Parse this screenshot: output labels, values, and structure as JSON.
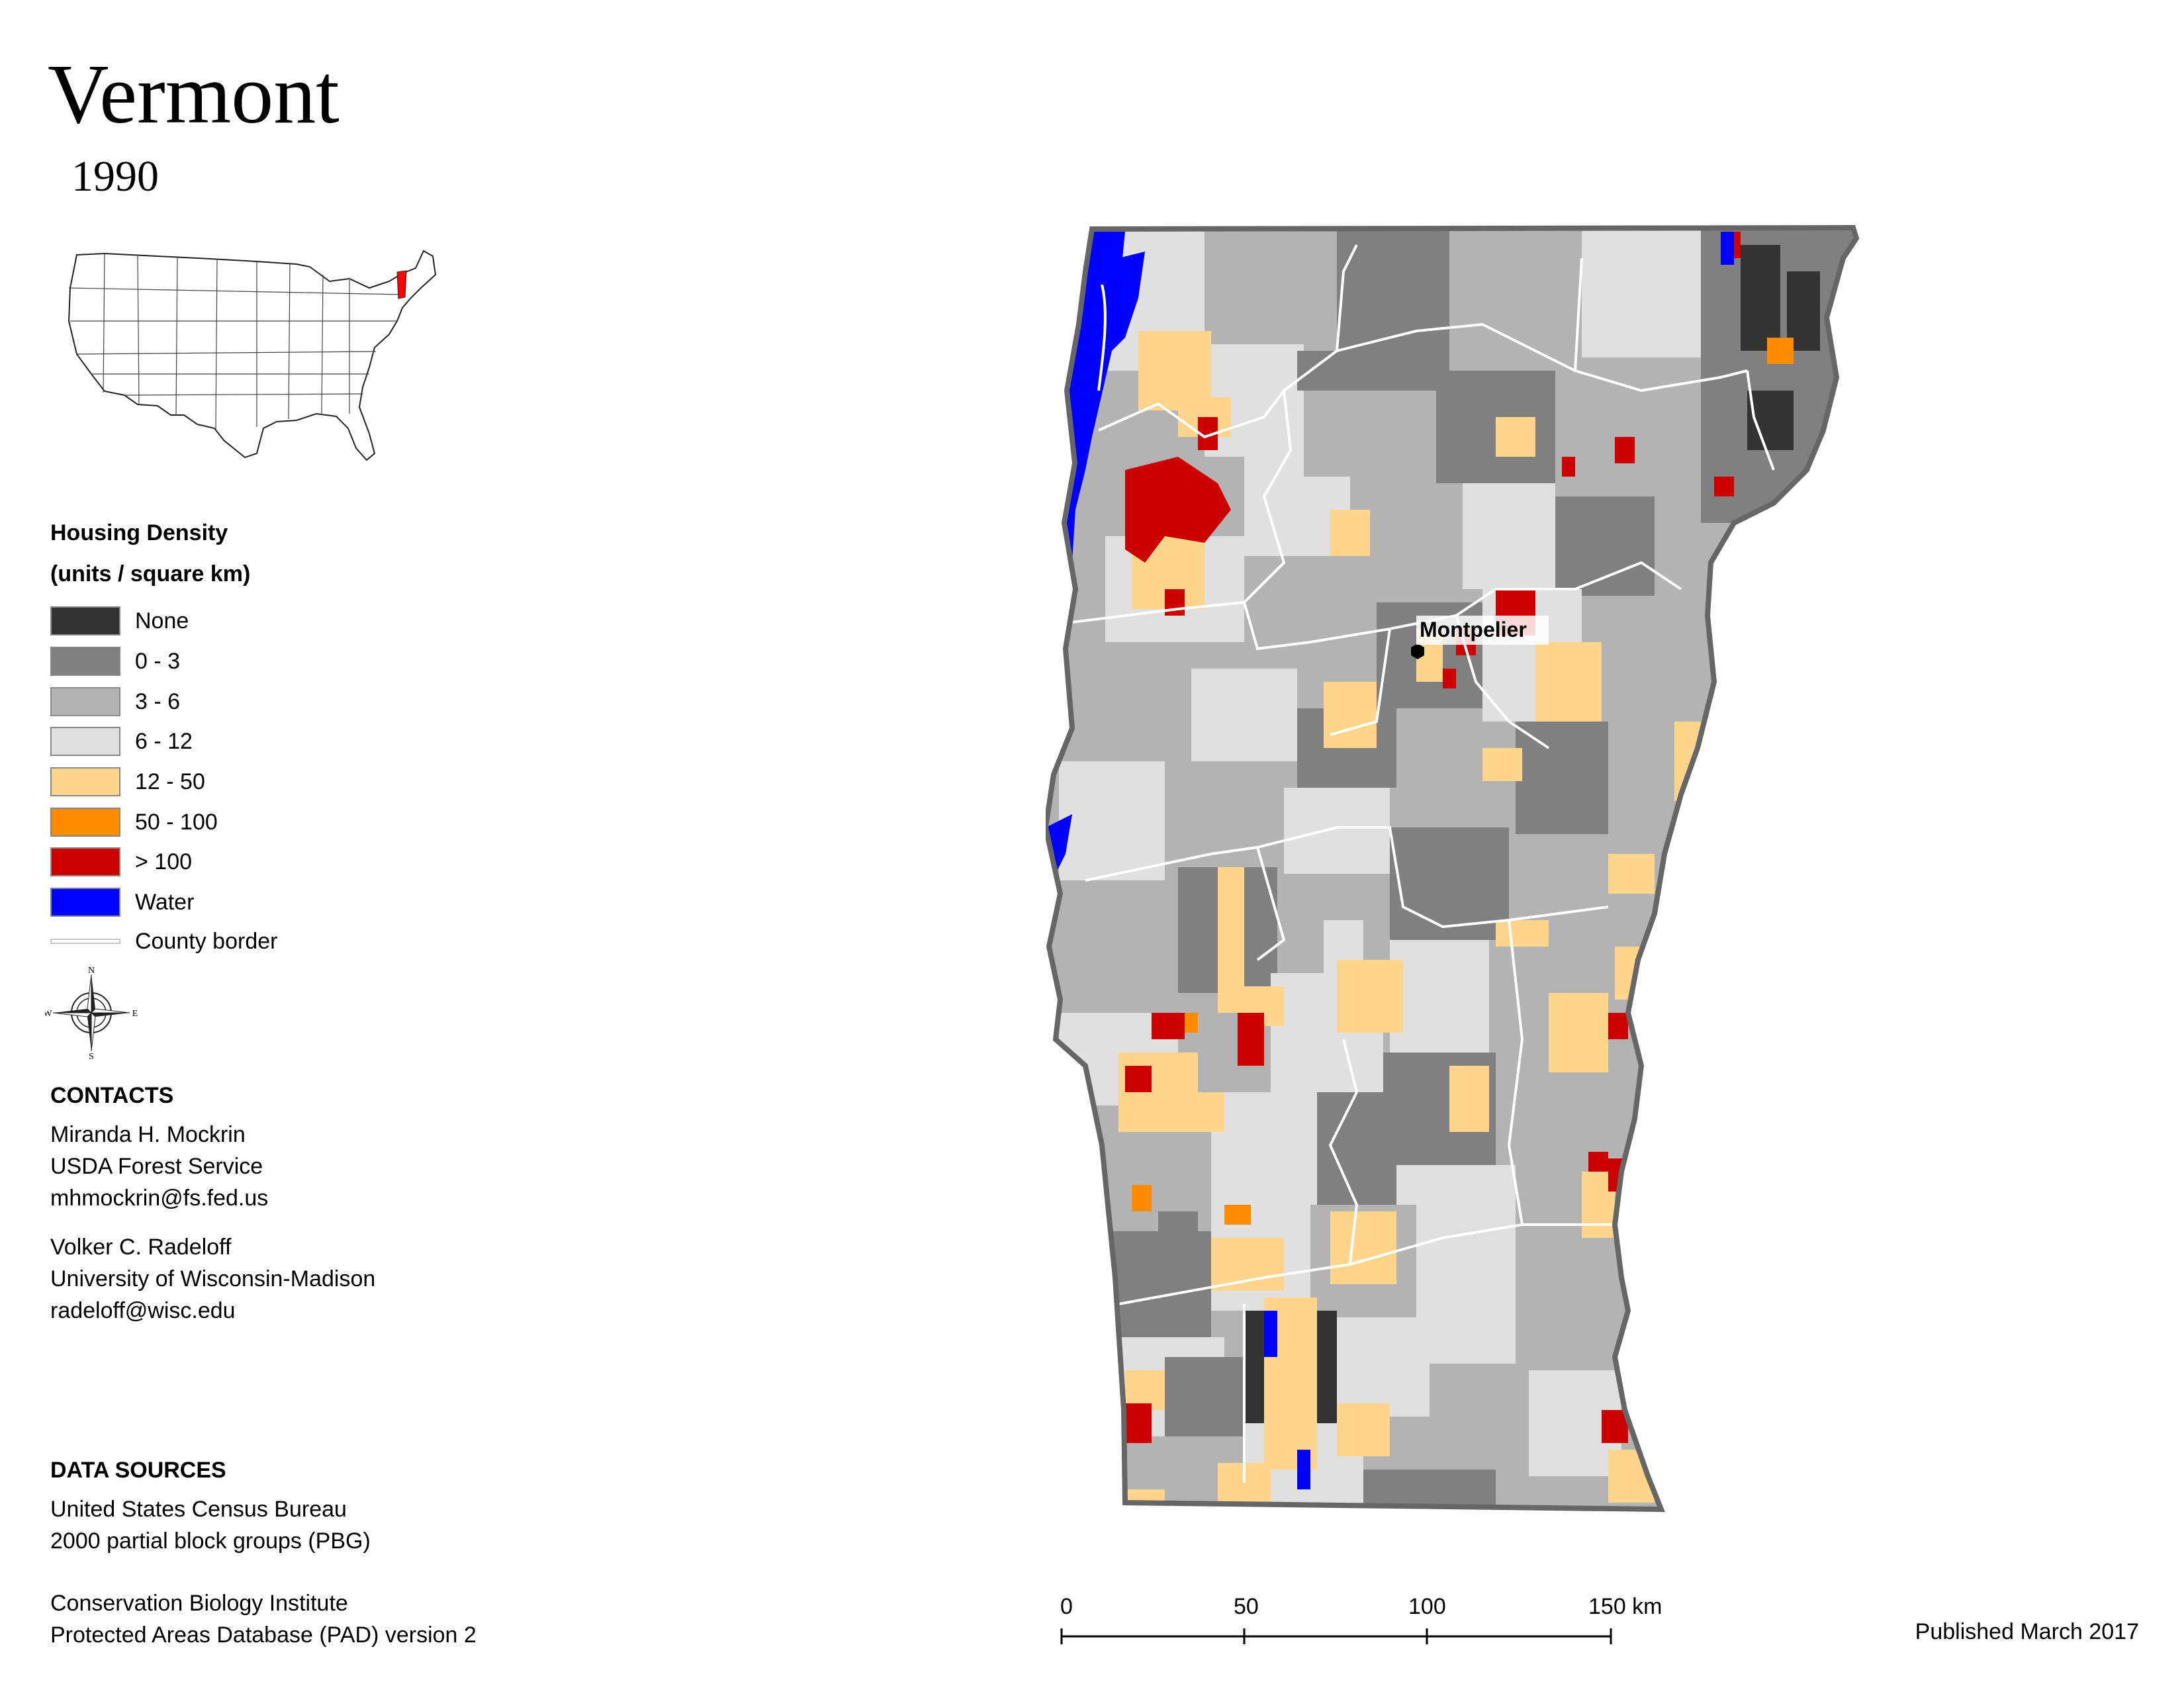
{
  "title": "Vermont",
  "year": "1990",
  "legend": {
    "title_line1": "Housing Density",
    "title_line2": "(units / square km)",
    "items": [
      {
        "label": "None",
        "color": "#333333"
      },
      {
        "label": "0 - 3",
        "color": "#808080"
      },
      {
        "label": "3 - 6",
        "color": "#b3b3b3"
      },
      {
        "label": "6 - 12",
        "color": "#e0e0e0"
      },
      {
        "label": "12 - 50",
        "color": "#fed58a"
      },
      {
        "label": "50 - 100",
        "color": "#ff8c00"
      },
      {
        "label": "> 100",
        "color": "#cc0000"
      },
      {
        "label": "Water",
        "color": "#0000ff"
      },
      {
        "label": "County border",
        "color": "#ffffff"
      }
    ]
  },
  "compass": {
    "n": "N",
    "s": "S",
    "e": "E",
    "w": "W"
  },
  "contacts": {
    "title": "CONTACTS",
    "person1": {
      "name": "Miranda H. Mockrin",
      "org": "USDA Forest Service",
      "email": "mhmockrin@fs.fed.us"
    },
    "person2": {
      "name": "Volker C. Radeloff",
      "org": "University of Wisconsin-Madison",
      "email": "radeloff@wisc.edu"
    }
  },
  "data_sources": {
    "title": "DATA SOURCES",
    "source1_line1": "United States Census Bureau",
    "source1_line2": "2000 partial block groups (PBG)",
    "source2_line1": "Conservation Biology Institute",
    "source2_line2": "Protected Areas Database (PAD) version 2"
  },
  "city_label": "Montpelier",
  "scale": {
    "labels": [
      "0",
      "50",
      "100",
      "150 km"
    ]
  },
  "published": "Published March 2017"
}
